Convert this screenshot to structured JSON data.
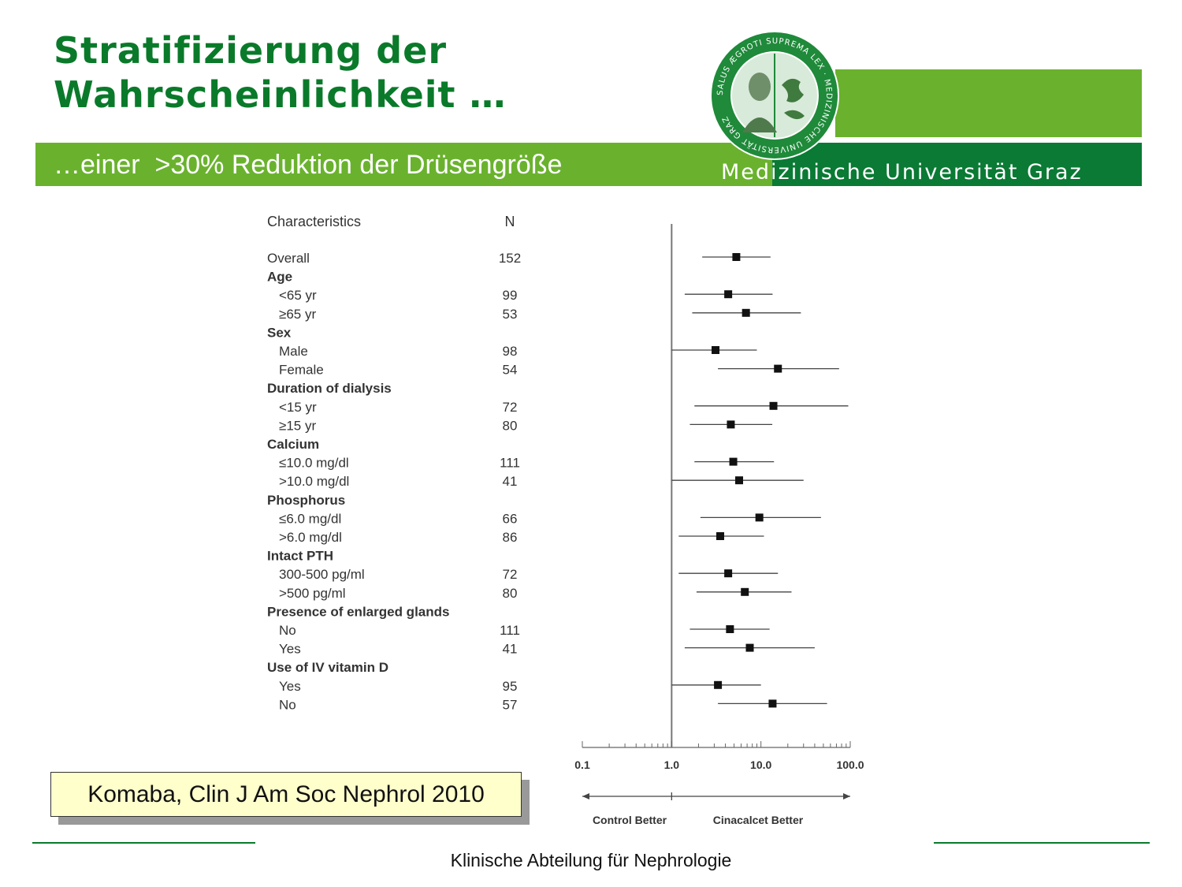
{
  "slide": {
    "title_line1": "Stratifizierung der",
    "title_line2": "Wahrscheinlichkeit …",
    "subtitle": "…einer  >30% Reduktion der Drüsengröße",
    "university": "Medizinische Universität Graz",
    "seal_text": "SALUS ÆGROTI SUPREMA LEX · MEDIZINISCHE UNIVERSITÄT GRAZ",
    "citation": "Komaba, Clin J Am Soc Nephrol 2010",
    "footer": "Klinische Abteilung für Nephrologie"
  },
  "colors": {
    "title_green": "#0a7a2a",
    "bar_light_green": "#6ab22e",
    "bar_dark_green": "#0a7a34",
    "citation_bg": "#ffffcc"
  },
  "chart_data": {
    "type": "forest",
    "column_headers": {
      "characteristics": "Characteristics",
      "n": "N"
    },
    "x_scale": "log",
    "xlim": [
      0.1,
      100.0
    ],
    "x_tick_labels": [
      "0.1",
      "1.0",
      "10.0",
      "100.0"
    ],
    "reference_line": 1.0,
    "direction_labels": {
      "left": "Control Better",
      "right": "Cinacalcet Better"
    },
    "rows": [
      {
        "label": "Overall",
        "n": "152",
        "header": false,
        "indent": false,
        "estimate": 5.3,
        "lower": 2.2,
        "upper": 12.8
      },
      {
        "label": "Age",
        "header": true
      },
      {
        "label": "<65 yr",
        "n": "99",
        "indent": true,
        "estimate": 4.3,
        "lower": 1.4,
        "upper": 13.5
      },
      {
        "label": "≥65 yr",
        "n": "53",
        "indent": true,
        "estimate": 6.8,
        "lower": 1.7,
        "upper": 28.0
      },
      {
        "label": "Sex",
        "header": true
      },
      {
        "label": "Male",
        "n": "98",
        "indent": true,
        "estimate": 3.1,
        "lower": 1.0,
        "upper": 9.0
      },
      {
        "label": "Female",
        "n": "54",
        "indent": true,
        "estimate": 15.5,
        "lower": 3.3,
        "upper": 75.0
      },
      {
        "label": "Duration of dialysis",
        "header": true
      },
      {
        "label": "<15 yr",
        "n": "72",
        "indent": true,
        "estimate": 13.8,
        "lower": 1.8,
        "upper": 95.0
      },
      {
        "label": "≥15 yr",
        "n": "80",
        "indent": true,
        "estimate": 4.6,
        "lower": 1.6,
        "upper": 13.4
      },
      {
        "label": "Calcium",
        "header": true
      },
      {
        "label": "≤10.0 mg/dl",
        "n": "111",
        "indent": true,
        "estimate": 4.9,
        "lower": 1.8,
        "upper": 14.0
      },
      {
        "label": ">10.0 mg/dl",
        "n": "41",
        "indent": true,
        "estimate": 5.7,
        "lower": 1.0,
        "upper": 30.0
      },
      {
        "label": "Phosphorus",
        "header": true
      },
      {
        "label": "≤6.0 mg/dl",
        "n": "66",
        "indent": true,
        "estimate": 9.6,
        "lower": 2.1,
        "upper": 47.0
      },
      {
        "label": ">6.0 mg/dl",
        "n": "86",
        "indent": true,
        "estimate": 3.5,
        "lower": 1.2,
        "upper": 10.8
      },
      {
        "label": "Intact PTH",
        "header": true
      },
      {
        "label": "300-500 pg/ml",
        "n": "72",
        "indent": true,
        "estimate": 4.3,
        "lower": 1.2,
        "upper": 15.5
      },
      {
        "label": ">500 pg/ml",
        "n": "80",
        "indent": true,
        "estimate": 6.6,
        "lower": 1.9,
        "upper": 22.0
      },
      {
        "label": "Presence of enlarged glands",
        "header": true
      },
      {
        "label": "No",
        "n": "111",
        "indent": true,
        "estimate": 4.5,
        "lower": 1.6,
        "upper": 12.5
      },
      {
        "label": "Yes",
        "n": "41",
        "indent": true,
        "estimate": 7.5,
        "lower": 1.4,
        "upper": 40.0
      },
      {
        "label": "Use of IV vitamin D",
        "header": true
      },
      {
        "label": "Yes",
        "n": "95",
        "indent": true,
        "estimate": 3.3,
        "lower": 1.0,
        "upper": 10.0
      },
      {
        "label": "No",
        "n": "57",
        "indent": true,
        "estimate": 13.5,
        "lower": 3.3,
        "upper": 55.0
      }
    ]
  }
}
